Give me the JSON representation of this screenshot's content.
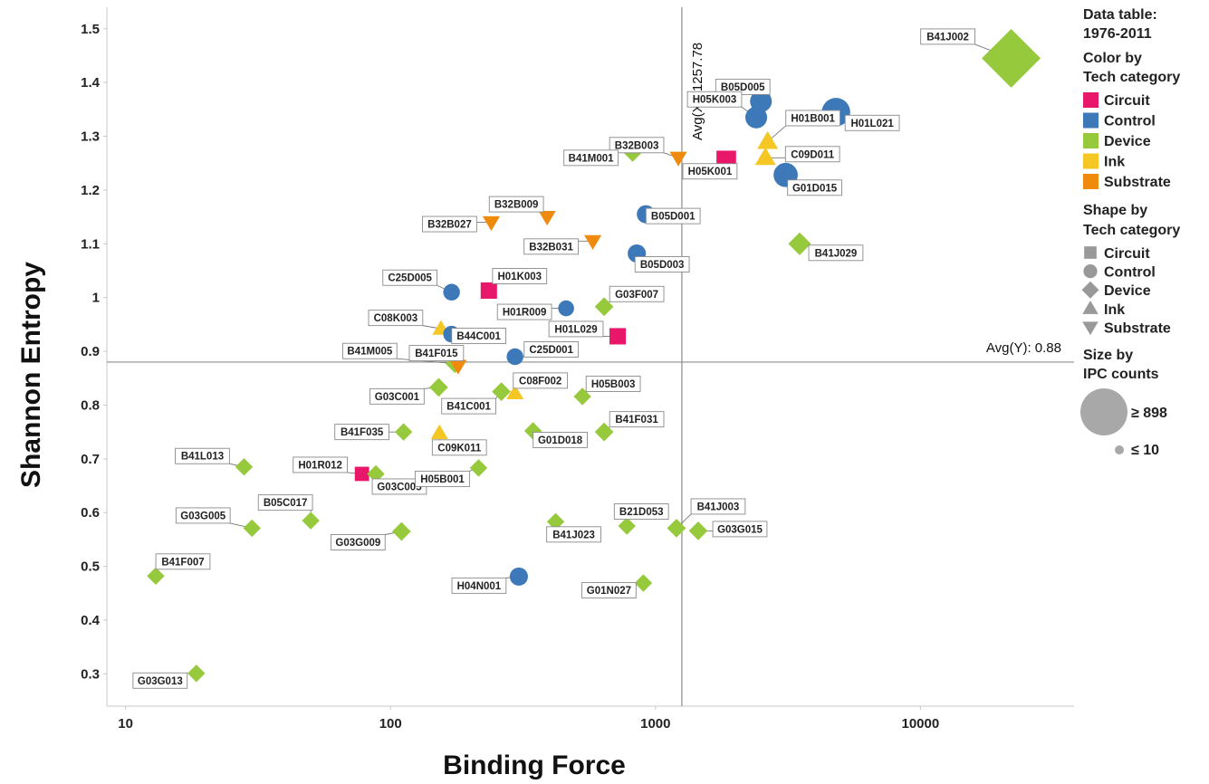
{
  "chart_data": {
    "type": "scatter",
    "xlabel": "Binding Force",
    "ylabel": "Shannon Entropy",
    "x_scale": "log",
    "xlim": [
      8.5,
      38000
    ],
    "ylim": [
      0.24,
      1.54
    ],
    "x_ticks": [
      10,
      100,
      1000,
      10000
    ],
    "x_tick_labels": [
      "10",
      "100",
      "1000",
      "10000"
    ],
    "y_ticks": [
      0.3,
      0.4,
      0.5,
      0.6,
      0.7,
      0.8,
      0.9,
      1.0,
      1.1,
      1.2,
      1.3,
      1.4,
      1.5
    ],
    "y_tick_labels": [
      "0.3",
      "0.4",
      "0.5",
      "0.6",
      "0.7",
      "0.8",
      "0.9",
      "1",
      "1.1",
      "1.2",
      "1.3",
      "1.4",
      "1.5"
    ],
    "grid": false,
    "reference_lines": {
      "x": {
        "value": 1257.78,
        "label": "Avg(X): 1257.78"
      },
      "y": {
        "value": 0.88,
        "label": "Avg(Y): 0.88"
      }
    },
    "colors": {
      "Circuit": "#e8176a",
      "Control": "#3d78b8",
      "Device": "#97c93c",
      "Ink": "#f4c724",
      "Substrate": "#f08a0c"
    },
    "shapes": {
      "Circuit": "square",
      "Control": "circle",
      "Device": "diamond",
      "Ink": "triangle-up",
      "Substrate": "triangle-down"
    },
    "points": [
      {
        "id": "B41J002",
        "x": 22000,
        "y": 1.445,
        "category": "Device",
        "size": 1000
      },
      {
        "id": "B05D005",
        "x": 2500,
        "y": 1.365,
        "category": "Control",
        "size": 150
      },
      {
        "id": "H05K003",
        "x": 2400,
        "y": 1.335,
        "category": "Control",
        "size": 150
      },
      {
        "id": "H01B001",
        "x": 2650,
        "y": 1.29,
        "category": "Ink",
        "size": 90
      },
      {
        "id": "H01L021",
        "x": 4800,
        "y": 1.345,
        "category": "Control",
        "size": 300
      },
      {
        "id": "C09D011",
        "x": 2600,
        "y": 1.26,
        "category": "Ink",
        "size": 90
      },
      {
        "id": "H05K001",
        "x": 1850,
        "y": 1.255,
        "category": "Circuit",
        "size": 150
      },
      {
        "id": "G01D015",
        "x": 3100,
        "y": 1.228,
        "category": "Control",
        "size": 200
      },
      {
        "id": "B32B003",
        "x": 1220,
        "y": 1.26,
        "category": "Substrate",
        "size": 50
      },
      {
        "id": "B41M001",
        "x": 820,
        "y": 1.27,
        "category": "Device",
        "size": 50
      },
      {
        "id": "B41J029",
        "x": 3500,
        "y": 1.1,
        "category": "Device",
        "size": 90
      },
      {
        "id": "B05D001",
        "x": 920,
        "y": 1.155,
        "category": "Control",
        "size": 90
      },
      {
        "id": "B32B009",
        "x": 390,
        "y": 1.15,
        "category": "Substrate",
        "size": 50
      },
      {
        "id": "B32B027",
        "x": 240,
        "y": 1.14,
        "category": "Substrate",
        "size": 50
      },
      {
        "id": "B32B031",
        "x": 580,
        "y": 1.105,
        "category": "Substrate",
        "size": 50
      },
      {
        "id": "B05D003",
        "x": 850,
        "y": 1.082,
        "category": "Control",
        "size": 90
      },
      {
        "id": "C25D005",
        "x": 170,
        "y": 1.01,
        "category": "Control",
        "size": 70
      },
      {
        "id": "H01K003",
        "x": 235,
        "y": 1.013,
        "category": "Circuit",
        "size": 90
      },
      {
        "id": "G03F007",
        "x": 640,
        "y": 0.983,
        "category": "Device",
        "size": 50
      },
      {
        "id": "H01R009",
        "x": 460,
        "y": 0.98,
        "category": "Control",
        "size": 60
      },
      {
        "id": "C08K003",
        "x": 155,
        "y": 0.942,
        "category": "Ink",
        "size": 50
      },
      {
        "id": "B44C001",
        "x": 170,
        "y": 0.932,
        "category": "Control",
        "size": 70
      },
      {
        "id": "H01L029",
        "x": 720,
        "y": 0.928,
        "category": "Circuit",
        "size": 90
      },
      {
        "id": "C25D001",
        "x": 295,
        "y": 0.89,
        "category": "Control",
        "size": 70
      },
      {
        "id": "B41M005",
        "x": 175,
        "y": 0.877,
        "category": "Device",
        "size": 50
      },
      {
        "id": "B41F015",
        "x": 180,
        "y": 0.873,
        "category": "Substrate",
        "size": 50
      },
      {
        "id": "G03C001",
        "x": 152,
        "y": 0.833,
        "category": "Device",
        "size": 50
      },
      {
        "id": "B41C001",
        "x": 262,
        "y": 0.825,
        "category": "Device",
        "size": 50
      },
      {
        "id": "C08F002",
        "x": 295,
        "y": 0.822,
        "category": "Ink",
        "size": 50
      },
      {
        "id": "H05B003",
        "x": 530,
        "y": 0.816,
        "category": "Device",
        "size": 40
      },
      {
        "id": "B41F035",
        "x": 112,
        "y": 0.75,
        "category": "Device",
        "size": 40
      },
      {
        "id": "C09K011",
        "x": 153,
        "y": 0.748,
        "category": "Ink",
        "size": 50
      },
      {
        "id": "G01D018",
        "x": 345,
        "y": 0.752,
        "category": "Device",
        "size": 40
      },
      {
        "id": "B41F031",
        "x": 640,
        "y": 0.75,
        "category": "Device",
        "size": 50
      },
      {
        "id": "B41L013",
        "x": 28,
        "y": 0.685,
        "category": "Device",
        "size": 40
      },
      {
        "id": "H01R012",
        "x": 78,
        "y": 0.672,
        "category": "Circuit",
        "size": 60
      },
      {
        "id": "G03C005",
        "x": 88,
        "y": 0.672,
        "category": "Device",
        "size": 40
      },
      {
        "id": "H05B001",
        "x": 215,
        "y": 0.683,
        "category": "Device",
        "size": 40
      },
      {
        "id": "G03G005",
        "x": 30,
        "y": 0.571,
        "category": "Device",
        "size": 40
      },
      {
        "id": "B05C017",
        "x": 50,
        "y": 0.585,
        "category": "Device",
        "size": 40
      },
      {
        "id": "G03G009",
        "x": 110,
        "y": 0.565,
        "category": "Device",
        "size": 50
      },
      {
        "id": "B41J023",
        "x": 420,
        "y": 0.583,
        "category": "Device",
        "size": 40
      },
      {
        "id": "B21D053",
        "x": 780,
        "y": 0.575,
        "category": "Device",
        "size": 40
      },
      {
        "id": "B41J003",
        "x": 1200,
        "y": 0.571,
        "category": "Device",
        "size": 50
      },
      {
        "id": "G03G015",
        "x": 1450,
        "y": 0.566,
        "category": "Device",
        "size": 50
      },
      {
        "id": "B41F007",
        "x": 13,
        "y": 0.482,
        "category": "Device",
        "size": 40
      },
      {
        "id": "H04N001",
        "x": 305,
        "y": 0.481,
        "category": "Control",
        "size": 90
      },
      {
        "id": "G01N027",
        "x": 900,
        "y": 0.469,
        "category": "Device",
        "size": 40
      },
      {
        "id": "G03G013",
        "x": 18.5,
        "y": 0.301,
        "category": "Device",
        "size": 40
      }
    ]
  },
  "legend": {
    "title_line1": "Data table:",
    "title_line2": "1976-2011",
    "color_title_line1": "Color by",
    "color_title_line2": "Tech category",
    "color_items": [
      "Circuit",
      "Control",
      "Device",
      "Ink",
      "Substrate"
    ],
    "shape_title_line1": "Shape by",
    "shape_title_line2": "Tech category",
    "shape_items": [
      "Circuit",
      "Control",
      "Device",
      "Ink",
      "Substrate"
    ],
    "shape_color": "#999999",
    "size_title_line1": "Size by",
    "size_title_line2": "IPC counts",
    "size_max_label": "≥ 898",
    "size_min_label": "≤ 10"
  }
}
